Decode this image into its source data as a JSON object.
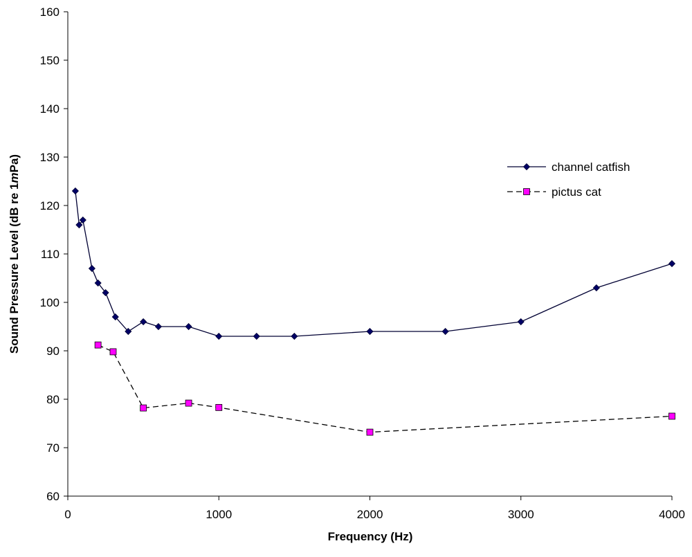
{
  "chart_data": {
    "type": "line",
    "title": "",
    "xlabel": "Frequency (Hz)",
    "ylabel": "Sound Pressure Level (dB re 1",
    "ylabel_italic": "m",
    "ylabel_suffix": "Pa)",
    "xlim": [
      0,
      4000
    ],
    "ylim": [
      60,
      160
    ],
    "xticks": [
      0,
      1000,
      2000,
      3000,
      4000
    ],
    "yticks": [
      60,
      70,
      80,
      90,
      100,
      110,
      120,
      130,
      140,
      150,
      160
    ],
    "grid": false,
    "legend_position": "right",
    "series": [
      {
        "name": "channel catfish",
        "color": "#000033",
        "line_style": "solid",
        "marker": "diamond",
        "marker_color": "#000066",
        "points": [
          [
            50,
            123
          ],
          [
            75,
            116
          ],
          [
            100,
            117
          ],
          [
            160,
            107
          ],
          [
            200,
            104
          ],
          [
            250,
            102
          ],
          [
            315,
            97
          ],
          [
            400,
            94
          ],
          [
            500,
            96
          ],
          [
            600,
            95
          ],
          [
            800,
            95
          ],
          [
            1000,
            93
          ],
          [
            1250,
            93
          ],
          [
            1500,
            93
          ],
          [
            2000,
            94
          ],
          [
            2500,
            94
          ],
          [
            3000,
            96
          ],
          [
            3500,
            103
          ],
          [
            4000,
            108
          ]
        ]
      },
      {
        "name": "pictus cat",
        "color": "#000000",
        "line_style": "dashed",
        "marker": "square",
        "marker_color": "#ff00ff",
        "points": [
          [
            200,
            91.2
          ],
          [
            300,
            89.8
          ],
          [
            500,
            78.2
          ],
          [
            800,
            79.2
          ],
          [
            1000,
            78.3
          ],
          [
            2000,
            73.2
          ],
          [
            4000,
            76.5
          ]
        ]
      }
    ]
  }
}
